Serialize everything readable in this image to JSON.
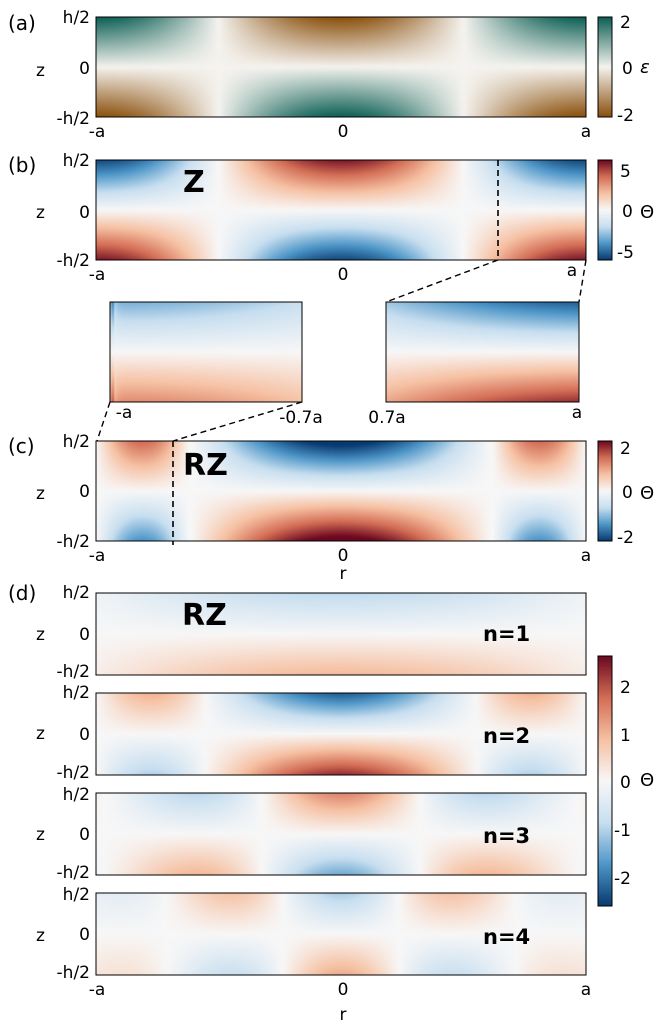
{
  "colors": {
    "panel_a": [
      "#8a4f0b",
      "#f5f3ef",
      "#0b5f54"
    ],
    "rdbu": [
      "#073a70",
      "#4e96c8",
      "#c8dff0",
      "#f7f7f7",
      "#f6c1a3",
      "#d36d55",
      "#6b0820"
    ]
  },
  "chart_data": [
    {
      "type": "heatmap",
      "panel": "(a)",
      "quantity": "ε",
      "xlabel": "",
      "ylabel": "z",
      "xticks": [
        "-a",
        "0",
        "a"
      ],
      "yticks": [
        "h/2",
        "0",
        "-h/2"
      ],
      "colorbar": {
        "range": [
          -2,
          2
        ],
        "ticks": [
          "2",
          "0",
          "-2"
        ],
        "label": "ε"
      },
      "pattern": "2.1*cos(pi*r/a)*(-z/(h/2))"
    },
    {
      "type": "heatmap",
      "panel": "(b)",
      "quantity": "Θ",
      "annotation": "Z",
      "xlabel": "",
      "ylabel": "z",
      "xticks": [
        "-a",
        "0",
        "a"
      ],
      "yticks": [
        "h/2",
        "0",
        "-h/2"
      ],
      "colorbar": {
        "range": [
          -6,
          6
        ],
        "ticks": [
          "5",
          "0",
          "-5"
        ],
        "label": "Θ"
      },
      "pattern": "6*cos(pi*r/a)*(-z/(h/2))",
      "insets": [
        {
          "xticks": [
            "-a",
            "-0.7a"
          ],
          "region": "left edge"
        },
        {
          "xticks": [
            "0.7a",
            "a"
          ],
          "region": "right edge"
        }
      ]
    },
    {
      "type": "heatmap",
      "panel": "(c)",
      "quantity": "Θ",
      "annotation": "RZ",
      "xlabel": "r",
      "ylabel": "z",
      "xticks": [
        "-a",
        "0",
        "a"
      ],
      "yticks": [
        "h/2",
        "0",
        "-h/2"
      ],
      "colorbar": {
        "range": [
          -2,
          2
        ],
        "ticks": [
          "2",
          "0",
          "-2"
        ],
        "label": "Θ"
      },
      "pattern": "2.2*J0-like(r)*(z/(h/2))"
    },
    {
      "type": "heatmap",
      "panel": "(d)",
      "quantity": "Θ",
      "annotation": "RZ",
      "xlabel": "r",
      "ylabel": "z",
      "xticks": [
        "-a",
        "0",
        "a"
      ],
      "yticks": [
        "h/2",
        "0",
        "-h/2"
      ],
      "modes": [
        "n=1",
        "n=2",
        "n=3",
        "n=4"
      ],
      "colorbar": {
        "range": [
          -2.6,
          2.6
        ],
        "ticks": [
          "2",
          "1",
          "0",
          "-1",
          "-2"
        ],
        "label": "Θ"
      }
    }
  ],
  "labels": {
    "a": {
      "panel": "(a)",
      "y": [
        "h/2",
        "0",
        "-h/2"
      ],
      "x": [
        "-a",
        "0",
        "a"
      ],
      "z": "z",
      "cb": [
        "2",
        "0",
        "-2"
      ],
      "cb_label": "ε"
    },
    "b": {
      "panel": "(b)",
      "y": [
        "h/2",
        "0",
        "-h/2"
      ],
      "x": [
        "-a",
        "0",
        "a"
      ],
      "z": "z",
      "cb": [
        "5",
        "0",
        "-5"
      ],
      "cb_label": "Θ",
      "tag": "Z",
      "inset_left": [
        "-a",
        "-0.7a"
      ],
      "inset_right": [
        "0.7a",
        "a"
      ]
    },
    "c": {
      "panel": "(c)",
      "y": [
        "h/2",
        "0",
        "-h/2"
      ],
      "x": [
        "-a",
        "0",
        "a"
      ],
      "z": "z",
      "r": "r",
      "cb": [
        "2",
        "0",
        "-2"
      ],
      "cb_label": "Θ",
      "tag": "RZ"
    },
    "d": {
      "panel": "(d)",
      "y": [
        "h/2",
        "0",
        "-h/2"
      ],
      "x": [
        "-a",
        "0",
        "a"
      ],
      "z": "z",
      "r": "r",
      "cb": [
        "2",
        "1",
        "0",
        "-1",
        "-2"
      ],
      "cb_label": "Θ",
      "tag": "RZ",
      "modes": [
        "n=1",
        "n=2",
        "n=3",
        "n=4"
      ]
    }
  }
}
